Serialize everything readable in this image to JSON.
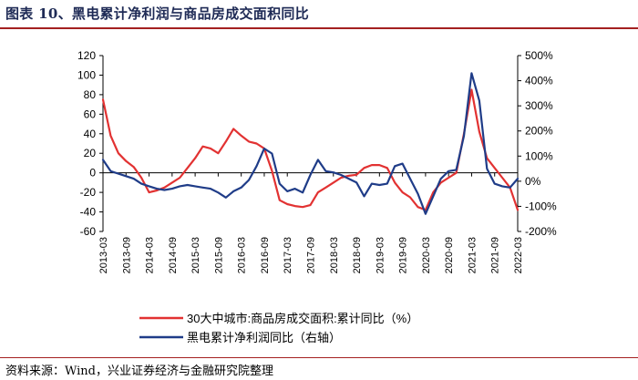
{
  "figure": {
    "title": "图表 10、黑电累计净利润与商品房成交面积同比",
    "source": "资料来源：Wind，兴业证券经济与金融研究院整理"
  },
  "colors": {
    "red": "#e23232",
    "navy": "#1f3c88"
  },
  "chart_data": {
    "type": "line",
    "x_tick_labels": [
      "2013-03",
      "2013-09",
      "2014-03",
      "2014-09",
      "2015-03",
      "2015-09",
      "2016-03",
      "2016-09",
      "2017-03",
      "2017-09",
      "2018-03",
      "2018-09",
      "2019-03",
      "2019-09",
      "2020-03",
      "2020-09",
      "2021-03",
      "2021-09",
      "2022-03"
    ],
    "left_axis": {
      "ylim": [
        -60,
        120
      ],
      "ticks": [
        -60,
        -40,
        -20,
        0,
        20,
        40,
        60,
        80,
        100,
        120
      ]
    },
    "right_axis": {
      "ylim": [
        -200,
        500
      ],
      "ticks": [
        "-200%",
        "-100%",
        "0%",
        "100%",
        "200%",
        "300%",
        "400%",
        "500%"
      ]
    },
    "x": [
      "2013-03",
      "2013-05",
      "2013-07",
      "2013-09",
      "2013-11",
      "2014-01",
      "2014-03",
      "2014-05",
      "2014-07",
      "2014-09",
      "2014-11",
      "2015-01",
      "2015-03",
      "2015-05",
      "2015-07",
      "2015-09",
      "2015-11",
      "2016-01",
      "2016-03",
      "2016-05",
      "2016-07",
      "2016-09",
      "2016-11",
      "2017-01",
      "2017-03",
      "2017-05",
      "2017-07",
      "2017-09",
      "2017-11",
      "2018-01",
      "2018-03",
      "2018-05",
      "2018-07",
      "2018-09",
      "2018-11",
      "2019-01",
      "2019-03",
      "2019-05",
      "2019-07",
      "2019-09",
      "2019-11",
      "2020-01",
      "2020-03",
      "2020-05",
      "2020-07",
      "2020-09",
      "2020-11",
      "2021-01",
      "2021-03",
      "2021-05",
      "2021-07",
      "2021-09",
      "2021-11",
      "2022-01",
      "2022-03"
    ],
    "series": [
      {
        "name": "30大中城市:商品房成交面积:累计同比（%）",
        "axis": "left",
        "color": "#e23232",
        "values": [
          75,
          38,
          20,
          12,
          6,
          -5,
          -20,
          -18,
          -15,
          -10,
          -5,
          5,
          15,
          27,
          25,
          20,
          32,
          45,
          38,
          32,
          30,
          25,
          2,
          -28,
          -32,
          -34,
          -35,
          -33,
          -20,
          -15,
          -10,
          -5,
          -3,
          -2,
          5,
          8,
          8,
          5,
          -10,
          -20,
          -25,
          -35,
          -38,
          -20,
          -10,
          -5,
          0,
          40,
          85,
          42,
          15,
          5,
          -5,
          -15,
          -38
        ]
      },
      {
        "name": "黑电累计净利润同比（右轴）",
        "axis": "right",
        "color": "#1f3c88",
        "values": [
          85,
          40,
          30,
          20,
          10,
          -10,
          -20,
          -30,
          -35,
          -30,
          -20,
          -15,
          -20,
          -25,
          -30,
          -45,
          -65,
          -40,
          -25,
          5,
          60,
          130,
          110,
          -10,
          -40,
          -30,
          -45,
          25,
          85,
          40,
          35,
          25,
          10,
          -5,
          -60,
          -10,
          -15,
          -10,
          60,
          70,
          10,
          -50,
          -130,
          -60,
          10,
          40,
          45,
          180,
          430,
          320,
          50,
          -10,
          -20,
          -25,
          10
        ]
      }
    ]
  }
}
